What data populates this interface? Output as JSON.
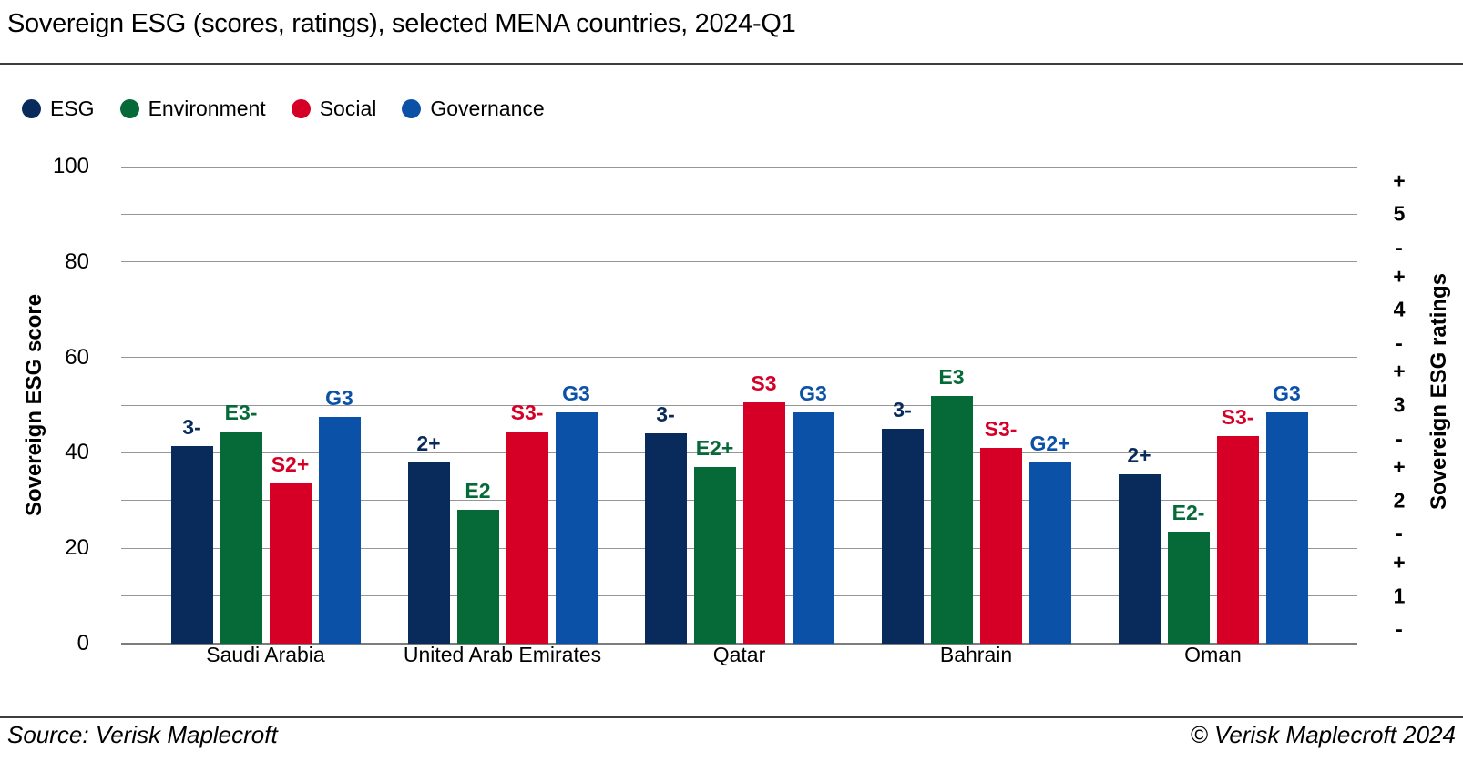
{
  "header": {
    "title": "Sovereign ESG (scores, ratings), selected MENA countries, 2024-Q1"
  },
  "legend": {
    "items": [
      {
        "label": "ESG",
        "color": "#082b5c"
      },
      {
        "label": "Environment",
        "color": "#056a38"
      },
      {
        "label": "Social",
        "color": "#d60027"
      },
      {
        "label": "Governance",
        "color": "#0b51a8"
      }
    ]
  },
  "chart_data": {
    "type": "bar",
    "title": "Sovereign ESG (scores, ratings), selected MENA countries, 2024-Q1",
    "categories": [
      "Saudi Arabia",
      "United Arab Emirates",
      "Qatar",
      "Bahrain",
      "Oman"
    ],
    "series": [
      {
        "name": "ESG",
        "color": "#082b5c",
        "values": [
          41.5,
          38,
          44,
          45,
          35.5
        ],
        "ratings": [
          "3-",
          "2+",
          "3-",
          "3-",
          "2+"
        ]
      },
      {
        "name": "Environment",
        "color": "#056a38",
        "values": [
          44.5,
          28,
          37,
          52,
          23.5
        ],
        "ratings": [
          "E3-",
          "E2",
          "E2+",
          "E3",
          "E2-"
        ]
      },
      {
        "name": "Social",
        "color": "#d60027",
        "values": [
          33.5,
          44.5,
          50.5,
          41,
          43.5
        ],
        "ratings": [
          "S2+",
          "S3-",
          "S3",
          "S3-",
          "S3-"
        ]
      },
      {
        "name": "Governance",
        "color": "#0b51a8",
        "values": [
          47.5,
          48.5,
          48.5,
          38,
          48.5
        ],
        "ratings": [
          "G3",
          "G3",
          "G3",
          "G2+",
          "G3"
        ]
      }
    ],
    "left_axis": {
      "label": "Sovereign ESG score",
      "range": [
        0,
        100
      ],
      "ticks": [
        0,
        20,
        40,
        60,
        80,
        100
      ],
      "gridline_step": 10
    },
    "right_axis": {
      "label": "Sovereign ESG ratings",
      "ticks": [
        {
          "label": "+",
          "value": 97
        },
        {
          "label": "5",
          "value": 90
        },
        {
          "label": "-",
          "value": 83
        },
        {
          "label": "+",
          "value": 77
        },
        {
          "label": "4",
          "value": 70
        },
        {
          "label": "-",
          "value": 63
        },
        {
          "label": "+",
          "value": 57
        },
        {
          "label": "3",
          "value": 50
        },
        {
          "label": "-",
          "value": 43
        },
        {
          "label": "+",
          "value": 37
        },
        {
          "label": "2",
          "value": 30
        },
        {
          "label": "-",
          "value": 23
        },
        {
          "label": "+",
          "value": 17
        },
        {
          "label": "1",
          "value": 10
        },
        {
          "label": "-",
          "value": 3
        }
      ]
    },
    "grid": true,
    "legend_position": "top"
  },
  "footer": {
    "source": "Source: Verisk Maplecroft",
    "copyright": "© Verisk Maplecroft 2024"
  }
}
